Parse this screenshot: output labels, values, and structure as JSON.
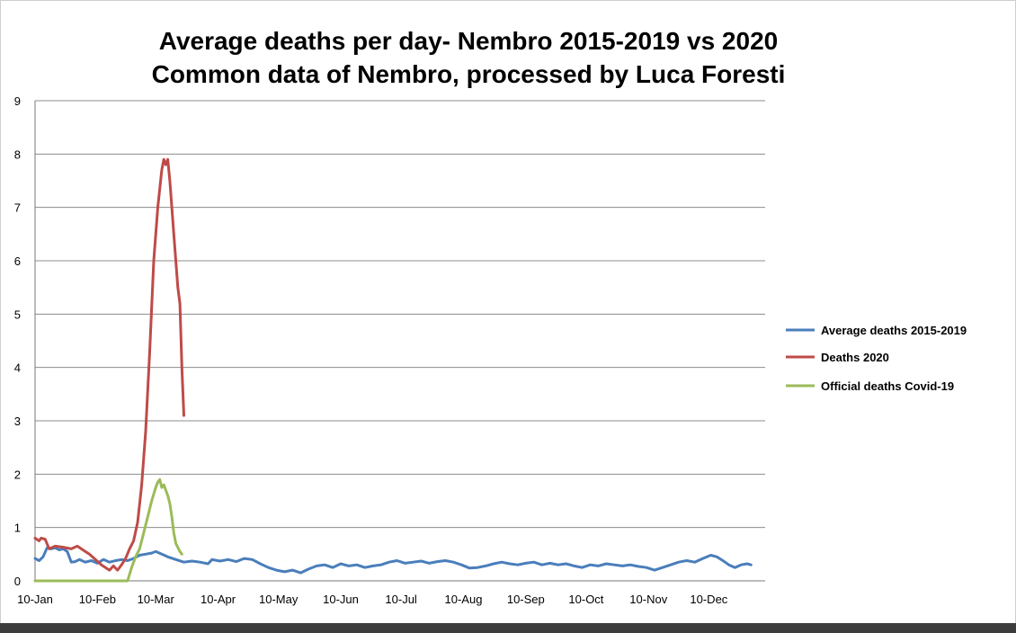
{
  "chart_data": {
    "type": "line",
    "title": "Average deaths per day- Nembro 2015-2019 vs 2020",
    "subtitle": "Common data of Nembro, processed by Luca Foresti",
    "xlabel": "",
    "ylabel": "",
    "ylim": [
      0,
      9
    ],
    "yticks": [
      "0",
      "1",
      "2",
      "3",
      "4",
      "5",
      "6",
      "7",
      "8",
      "9"
    ],
    "xticks": [
      {
        "label": "10-Jan",
        "day": 0
      },
      {
        "label": "10-Feb",
        "day": 31
      },
      {
        "label": "10-Mar",
        "day": 60
      },
      {
        "label": "10-Apr",
        "day": 91
      },
      {
        "label": "10-May",
        "day": 121
      },
      {
        "label": "10-Jun",
        "day": 152
      },
      {
        "label": "10-Jul",
        "day": 182
      },
      {
        "label": "10-Aug",
        "day": 213
      },
      {
        "label": "10-Sep",
        "day": 244
      },
      {
        "label": "10-Oct",
        "day": 274
      },
      {
        "label": "10-Nov",
        "day": 305
      },
      {
        "label": "10-Dec",
        "day": 335
      }
    ],
    "grid": true,
    "legend_position": "right",
    "series": [
      {
        "name": "Average deaths 2015-2019",
        "color": "#4a7ebb",
        "points": [
          [
            0,
            0.42
          ],
          [
            2,
            0.38
          ],
          [
            4,
            0.45
          ],
          [
            6,
            0.62
          ],
          [
            8,
            0.6
          ],
          [
            10,
            0.62
          ],
          [
            12,
            0.58
          ],
          [
            14,
            0.6
          ],
          [
            16,
            0.55
          ],
          [
            18,
            0.35
          ],
          [
            20,
            0.36
          ],
          [
            22,
            0.4
          ],
          [
            25,
            0.35
          ],
          [
            28,
            0.38
          ],
          [
            31,
            0.33
          ],
          [
            34,
            0.4
          ],
          [
            37,
            0.35
          ],
          [
            40,
            0.38
          ],
          [
            43,
            0.4
          ],
          [
            46,
            0.38
          ],
          [
            49,
            0.42
          ],
          [
            52,
            0.48
          ],
          [
            55,
            0.5
          ],
          [
            58,
            0.52
          ],
          [
            60,
            0.55
          ],
          [
            63,
            0.5
          ],
          [
            66,
            0.45
          ],
          [
            70,
            0.4
          ],
          [
            74,
            0.35
          ],
          [
            78,
            0.37
          ],
          [
            82,
            0.35
          ],
          [
            86,
            0.32
          ],
          [
            88,
            0.4
          ],
          [
            92,
            0.37
          ],
          [
            96,
            0.4
          ],
          [
            100,
            0.36
          ],
          [
            104,
            0.42
          ],
          [
            108,
            0.4
          ],
          [
            112,
            0.32
          ],
          [
            116,
            0.25
          ],
          [
            120,
            0.2
          ],
          [
            124,
            0.17
          ],
          [
            128,
            0.2
          ],
          [
            132,
            0.15
          ],
          [
            136,
            0.22
          ],
          [
            140,
            0.28
          ],
          [
            144,
            0.3
          ],
          [
            148,
            0.25
          ],
          [
            152,
            0.32
          ],
          [
            156,
            0.28
          ],
          [
            160,
            0.3
          ],
          [
            164,
            0.25
          ],
          [
            168,
            0.28
          ],
          [
            172,
            0.3
          ],
          [
            176,
            0.35
          ],
          [
            180,
            0.38
          ],
          [
            184,
            0.33
          ],
          [
            188,
            0.35
          ],
          [
            192,
            0.37
          ],
          [
            196,
            0.33
          ],
          [
            200,
            0.36
          ],
          [
            204,
            0.38
          ],
          [
            208,
            0.35
          ],
          [
            212,
            0.3
          ],
          [
            216,
            0.24
          ],
          [
            220,
            0.25
          ],
          [
            224,
            0.28
          ],
          [
            228,
            0.32
          ],
          [
            232,
            0.35
          ],
          [
            236,
            0.32
          ],
          [
            240,
            0.3
          ],
          [
            244,
            0.33
          ],
          [
            248,
            0.35
          ],
          [
            252,
            0.3
          ],
          [
            256,
            0.33
          ],
          [
            260,
            0.3
          ],
          [
            264,
            0.32
          ],
          [
            268,
            0.28
          ],
          [
            272,
            0.25
          ],
          [
            276,
            0.3
          ],
          [
            280,
            0.28
          ],
          [
            284,
            0.32
          ],
          [
            288,
            0.3
          ],
          [
            292,
            0.28
          ],
          [
            296,
            0.3
          ],
          [
            300,
            0.27
          ],
          [
            304,
            0.25
          ],
          [
            308,
            0.2
          ],
          [
            312,
            0.25
          ],
          [
            316,
            0.3
          ],
          [
            320,
            0.35
          ],
          [
            324,
            0.38
          ],
          [
            328,
            0.35
          ],
          [
            332,
            0.42
          ],
          [
            336,
            0.48
          ],
          [
            339,
            0.45
          ],
          [
            342,
            0.38
          ],
          [
            345,
            0.3
          ],
          [
            348,
            0.25
          ],
          [
            351,
            0.3
          ],
          [
            354,
            0.32
          ],
          [
            356,
            0.3
          ]
        ]
      },
      {
        "name": "Deaths 2020",
        "color": "#be4b48",
        "points": [
          [
            0,
            0.8
          ],
          [
            2,
            0.75
          ],
          [
            3,
            0.8
          ],
          [
            5,
            0.78
          ],
          [
            7,
            0.6
          ],
          [
            10,
            0.65
          ],
          [
            14,
            0.63
          ],
          [
            18,
            0.6
          ],
          [
            21,
            0.65
          ],
          [
            23,
            0.6
          ],
          [
            25,
            0.55
          ],
          [
            27,
            0.5
          ],
          [
            30,
            0.4
          ],
          [
            33,
            0.3
          ],
          [
            35,
            0.25
          ],
          [
            37,
            0.2
          ],
          [
            39,
            0.28
          ],
          [
            41,
            0.2
          ],
          [
            43,
            0.3
          ],
          [
            45,
            0.42
          ],
          [
            47,
            0.6
          ],
          [
            49,
            0.75
          ],
          [
            51,
            1.1
          ],
          [
            53,
            1.8
          ],
          [
            55,
            2.8
          ],
          [
            57,
            4.3
          ],
          [
            59,
            6.0
          ],
          [
            61,
            7.0
          ],
          [
            63,
            7.7
          ],
          [
            64,
            7.9
          ],
          [
            65,
            7.8
          ],
          [
            66,
            7.9
          ],
          [
            67,
            7.5
          ],
          [
            69,
            6.5
          ],
          [
            71,
            5.5
          ],
          [
            72,
            5.2
          ],
          [
            73,
            4.0
          ],
          [
            74,
            3.1
          ]
        ]
      },
      {
        "name": "Official deaths Covid-19",
        "color": "#9bbb59",
        "points": [
          [
            0,
            0
          ],
          [
            46,
            0
          ],
          [
            48,
            0.25
          ],
          [
            50,
            0.45
          ],
          [
            52,
            0.6
          ],
          [
            54,
            0.9
          ],
          [
            56,
            1.2
          ],
          [
            58,
            1.5
          ],
          [
            60,
            1.75
          ],
          [
            61,
            1.85
          ],
          [
            62,
            1.9
          ],
          [
            63,
            1.75
          ],
          [
            64,
            1.8
          ],
          [
            65,
            1.7
          ],
          [
            66,
            1.6
          ],
          [
            67,
            1.45
          ],
          [
            68,
            1.2
          ],
          [
            69,
            0.9
          ],
          [
            70,
            0.7
          ],
          [
            72,
            0.55
          ],
          [
            73,
            0.5
          ]
        ]
      }
    ]
  }
}
